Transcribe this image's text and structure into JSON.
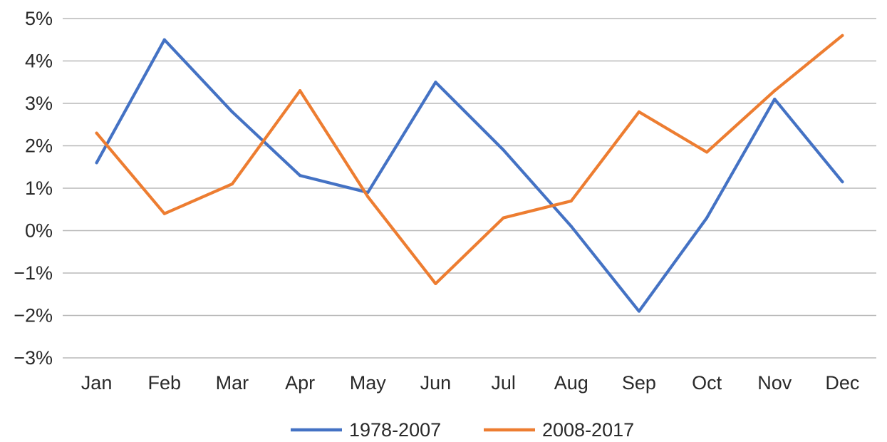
{
  "chart_data": {
    "type": "line",
    "categories": [
      "Jan",
      "Feb",
      "Mar",
      "Apr",
      "May",
      "Jun",
      "Jul",
      "Aug",
      "Sep",
      "Oct",
      "Nov",
      "Dec"
    ],
    "series": [
      {
        "name": "1978-2007",
        "color": "#4472c4",
        "values": [
          1.6,
          4.5,
          2.8,
          1.3,
          0.9,
          3.5,
          1.9,
          0.1,
          -1.9,
          0.3,
          3.1,
          1.15
        ]
      },
      {
        "name": "2008-2017",
        "color": "#ed7d31",
        "values": [
          2.3,
          0.4,
          1.1,
          3.3,
          0.8,
          -1.25,
          0.3,
          0.7,
          2.8,
          1.85,
          3.3,
          4.6
        ]
      }
    ],
    "y_ticks": [
      "5%",
      "4%",
      "3%",
      "2%",
      "1%",
      "0%",
      "−1%",
      "−2%",
      "−3%"
    ],
    "ylim": [
      -3,
      5
    ],
    "grid": true,
    "legend_position": "bottom"
  }
}
